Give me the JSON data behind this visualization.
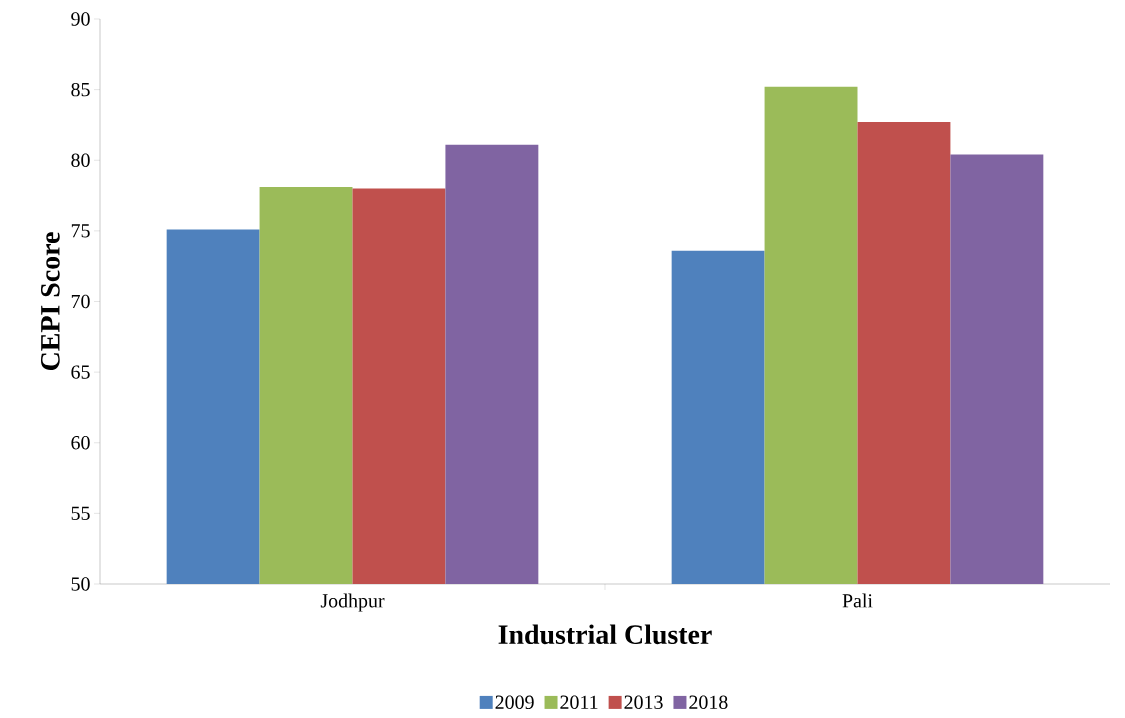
{
  "chart_data": {
    "type": "bar",
    "xlabel": "Industrial Cluster",
    "ylabel": "CEPI Score",
    "categories": [
      "Jodhpur",
      "Pali"
    ],
    "series": [
      {
        "name": "2009",
        "color": "#4f81bd",
        "values": [
          75.1,
          73.6
        ]
      },
      {
        "name": "2011",
        "color": "#9bbb59",
        "values": [
          78.1,
          85.2
        ]
      },
      {
        "name": "2013",
        "color": "#c0504d",
        "values": [
          78.0,
          82.7
        ]
      },
      {
        "name": "2018",
        "color": "#8064a2",
        "values": [
          81.1,
          80.4
        ]
      }
    ],
    "ylim": [
      50,
      90
    ],
    "yticks": [
      50,
      55,
      60,
      65,
      70,
      75,
      80,
      85,
      90
    ],
    "legend": "bottom"
  }
}
